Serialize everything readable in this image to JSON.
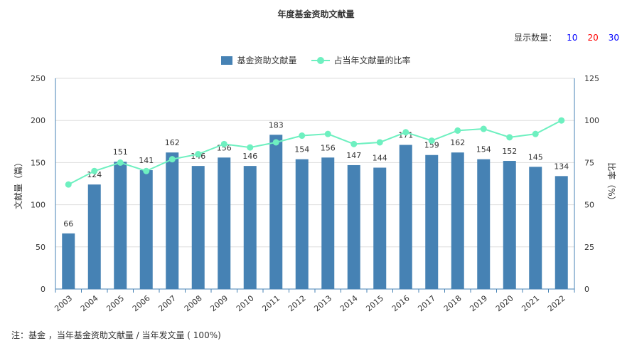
{
  "title": "年度基金资助文献量",
  "count_selector": {
    "label": "显示数量：",
    "options": [
      {
        "label": "10",
        "color": "#0000ff"
      },
      {
        "label": "20",
        "color": "#ff0000"
      },
      {
        "label": "30",
        "color": "#0000ff"
      }
    ]
  },
  "footnote": "注：基金 ，当年基金资助文献量 / 当年发文量 ( 100%)",
  "chart_data": {
    "type": "bar",
    "title": "年度基金资助文献量",
    "categories": [
      "2003",
      "2004",
      "2005",
      "2006",
      "2007",
      "2008",
      "2009",
      "2010",
      "2011",
      "2012",
      "2013",
      "2014",
      "2015",
      "2016",
      "2017",
      "2018",
      "2019",
      "2020",
      "2021",
      "2022"
    ],
    "series": [
      {
        "name": "基金资助文献量",
        "type": "bar",
        "axis": "left",
        "color": "#4682b4",
        "values": [
          66,
          124,
          151,
          141,
          162,
          146,
          156,
          146,
          183,
          154,
          156,
          147,
          144,
          171,
          159,
          162,
          154,
          152,
          145,
          134
        ]
      },
      {
        "name": "占当年文献量的比率",
        "type": "line",
        "axis": "right",
        "color": "#6ef0c0",
        "values": [
          62,
          70,
          75,
          70,
          77,
          80,
          86,
          84,
          87,
          91,
          92,
          86,
          87,
          93,
          88,
          94,
          95,
          90,
          92,
          100
        ]
      }
    ],
    "ylabel": "文献量（篇）",
    "ylabel_right": "比率（%）",
    "ylim": [
      0,
      250
    ],
    "yticks": [
      0,
      50,
      100,
      150,
      200,
      250
    ],
    "ylim_right": [
      0,
      125
    ],
    "yticks_right": [
      0,
      25,
      50,
      75,
      100,
      125
    ],
    "grid": true,
    "legend_position": "top"
  }
}
